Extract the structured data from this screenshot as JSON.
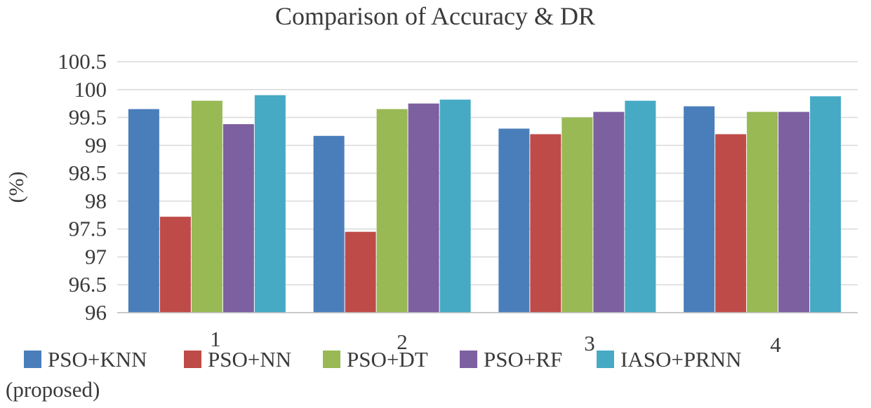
{
  "chart_data": {
    "type": "bar",
    "title": "Comparison of Accuracy & DR",
    "xlabel": "",
    "ylabel": "(%)",
    "ylim": [
      96,
      100.5
    ],
    "yticks": [
      "96",
      "96.5",
      "97",
      "97.5",
      "98",
      "98.5",
      "99",
      "99.5",
      "100",
      "100.5"
    ],
    "categories": [
      "1",
      "2",
      "3",
      "4"
    ],
    "series": [
      {
        "name": "PSO+KNN",
        "color": "#4a7ebb",
        "values": [
          99.65,
          99.17,
          99.3,
          99.7
        ]
      },
      {
        "name": "PSO+NN",
        "color": "#be4b48",
        "values": [
          97.72,
          97.45,
          99.2,
          99.2
        ]
      },
      {
        "name": "PSO+DT",
        "color": "#98b954",
        "values": [
          99.8,
          99.65,
          99.5,
          99.6
        ]
      },
      {
        "name": "PSO+RF",
        "color": "#7d60a0",
        "values": [
          99.38,
          99.75,
          99.6,
          99.6
        ]
      },
      {
        "name": "IASO+PRNN",
        "color": "#46aac5",
        "values": [
          99.9,
          99.82,
          99.8,
          99.88
        ]
      }
    ],
    "legend_suffix": "(proposed)",
    "legend_position": "bottom",
    "grid": true
  }
}
